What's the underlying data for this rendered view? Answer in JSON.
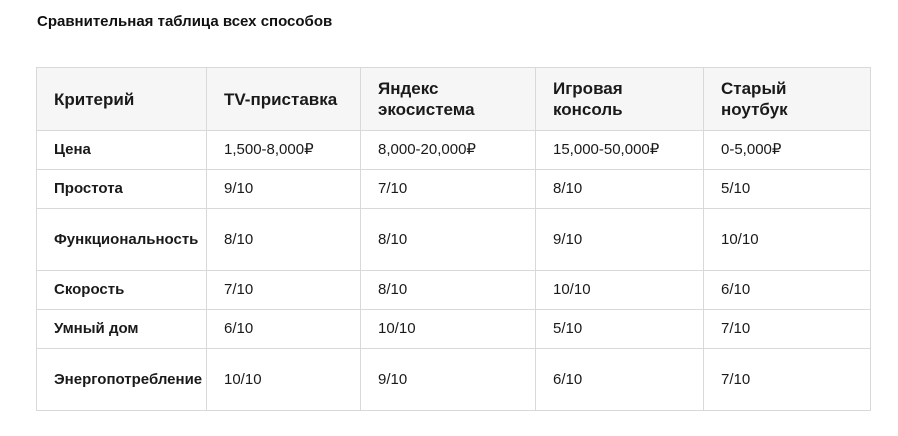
{
  "title": "Сравнительная таблица всех способов",
  "table": {
    "headers": [
      "Критерий",
      "TV-приставка",
      "Яндекс экосистема",
      "Игровая консоль",
      "Старый ноутбук"
    ],
    "rows": [
      {
        "criterion": "Цена",
        "values": [
          "1,500-8,000₽",
          "8,000-20,000₽",
          "15,000-50,000₽",
          "0-5,000₽"
        ]
      },
      {
        "criterion": "Простота",
        "values": [
          "9/10",
          "7/10",
          "8/10",
          "5/10"
        ]
      },
      {
        "criterion": "Функциональность",
        "values": [
          "8/10",
          "8/10",
          "9/10",
          "10/10"
        ]
      },
      {
        "criterion": "Скорость",
        "values": [
          "7/10",
          "8/10",
          "10/10",
          "6/10"
        ]
      },
      {
        "criterion": "Умный дом",
        "values": [
          "6/10",
          "10/10",
          "5/10",
          "7/10"
        ]
      },
      {
        "criterion": "Энергопотребление",
        "values": [
          "10/10",
          "9/10",
          "6/10",
          "7/10"
        ]
      }
    ]
  }
}
